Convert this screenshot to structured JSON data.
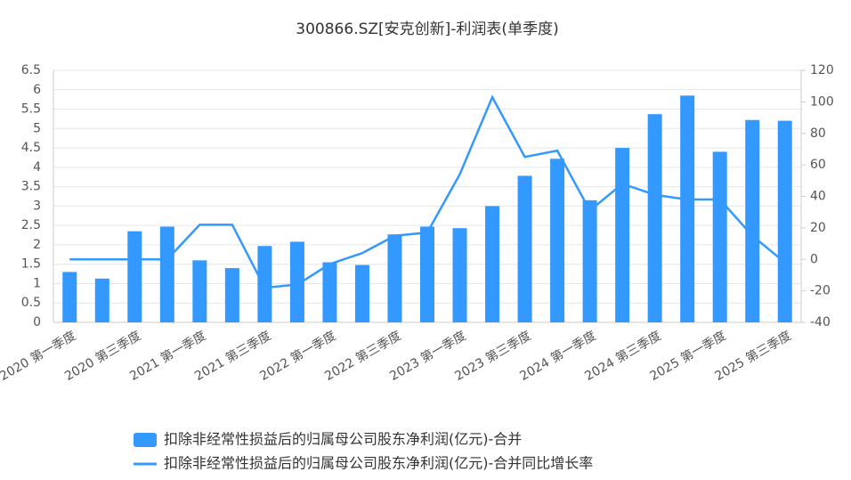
{
  "chart_data": {
    "type": "bar_line",
    "title": "300866.SZ[安克创新]-利润表(单季度)",
    "categories": [
      "2020 第一季度",
      null,
      "2020 第三季度",
      null,
      "2021 第一季度",
      null,
      "2021 第三季度",
      null,
      "2022 第一季度",
      null,
      "2022 第三季度",
      null,
      "2023 第一季度",
      null,
      "2023 第三季度",
      null,
      "2024 第一季度",
      null,
      "2024 第三季度",
      null,
      "2025 第一季度",
      null,
      "2025 第三季度"
    ],
    "series": [
      {
        "name": "扣除非经常性损益后的归属母公司股东净利润(亿元)-合并",
        "type": "bar",
        "color": "#3399ff",
        "values": [
          1.3,
          1.13,
          2.35,
          2.47,
          1.6,
          1.4,
          1.97,
          2.08,
          1.55,
          1.48,
          2.27,
          2.47,
          2.43,
          3.0,
          3.78,
          4.22,
          3.15,
          4.5,
          5.37,
          5.85,
          4.4,
          5.22,
          5.2
        ]
      },
      {
        "name": "扣除非经常性损益后的归属母公司股东净利润(亿元)-合并同比增长率",
        "type": "line",
        "axis": "y2",
        "color": "#3399ff",
        "values": [
          0,
          0,
          0,
          0,
          22,
          22,
          -18,
          -16,
          -3,
          4,
          15,
          17,
          54,
          103,
          65,
          69,
          31,
          48,
          41,
          38,
          38,
          15,
          -2
        ]
      }
    ],
    "ylim": [
      0,
      6.5
    ],
    "yticks": [
      0,
      0.5,
      1,
      1.5,
      2,
      2.5,
      3,
      3.5,
      4,
      4.5,
      5,
      5.5,
      6,
      6.5
    ],
    "y2lim": [
      -40,
      120
    ],
    "y2ticks": [
      -40,
      -20,
      0,
      20,
      40,
      60,
      80,
      100,
      120
    ],
    "grid": true
  }
}
